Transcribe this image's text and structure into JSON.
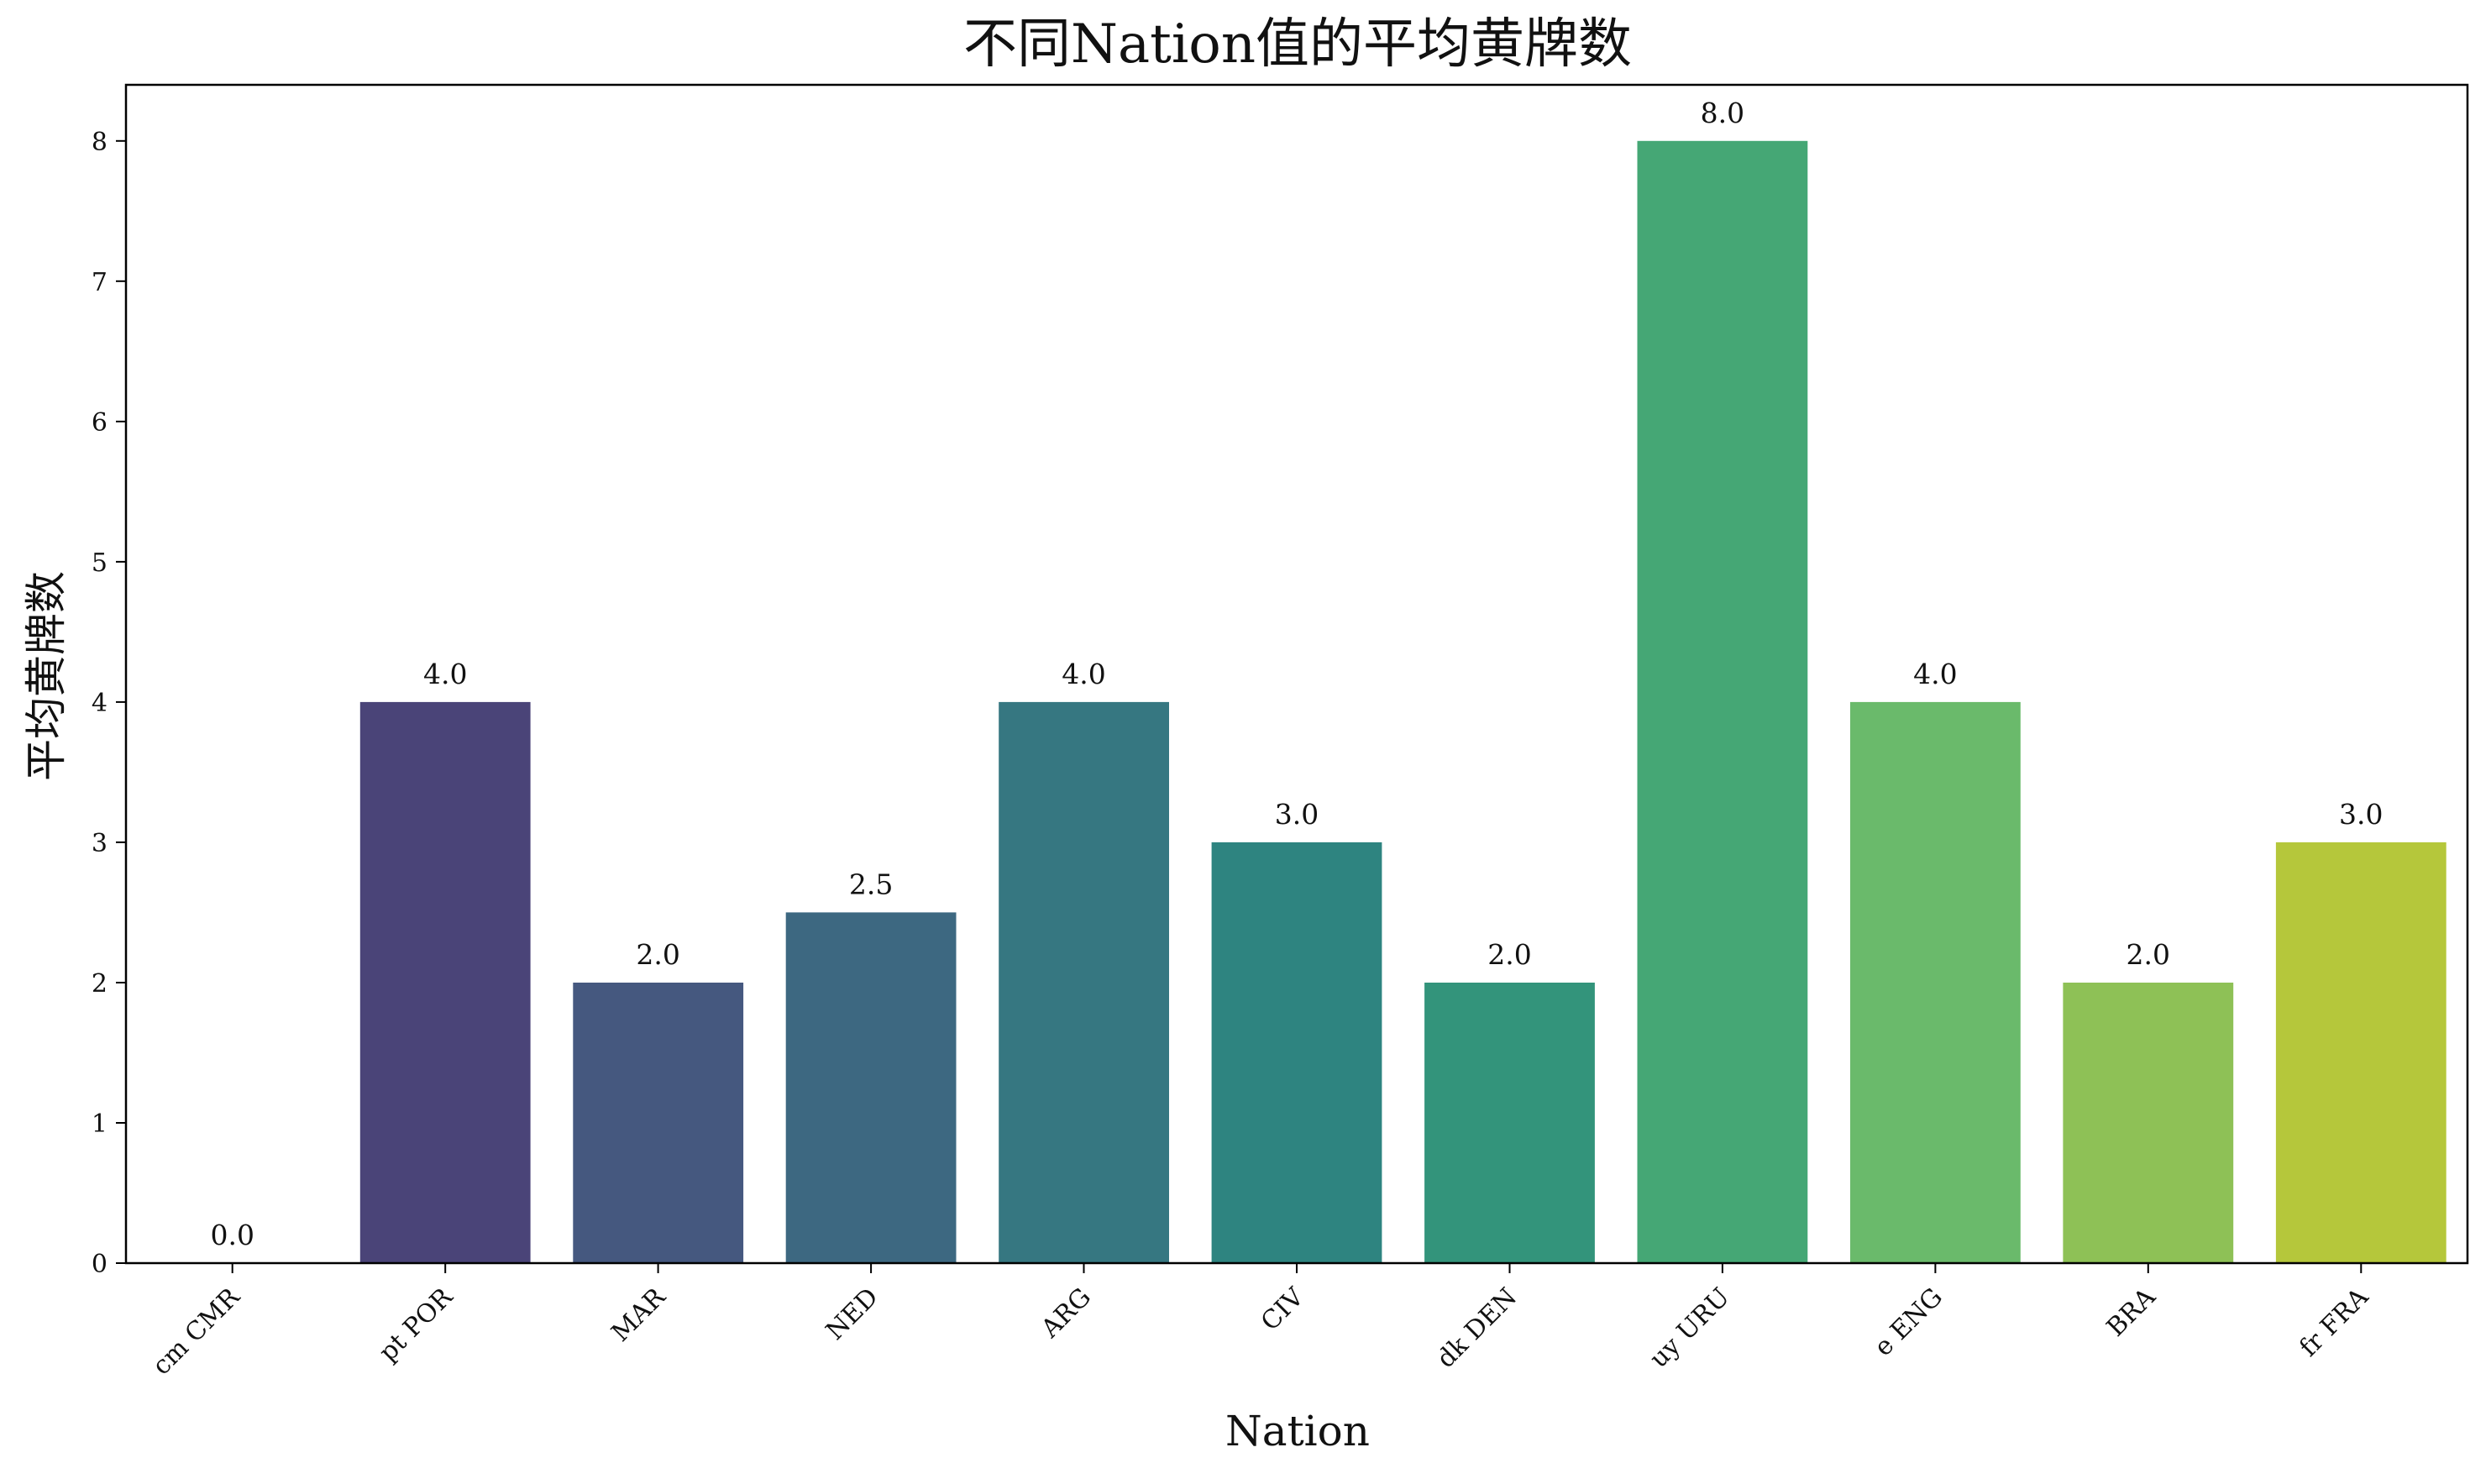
{
  "chart_data": {
    "type": "bar",
    "title": "不同Nation值的平均黄牌数",
    "xlabel": "Nation",
    "ylabel": "平均黄牌数",
    "categories": [
      "cm CMR",
      "pt POR",
      "MAR",
      "NED",
      "ARG",
      "CIV",
      "dk DEN",
      "uy URU",
      "e ENG",
      "BRA",
      "fr FRA"
    ],
    "values": [
      0.0,
      4.0,
      2.0,
      2.5,
      4.0,
      3.0,
      2.0,
      8.0,
      4.0,
      2.0,
      3.0
    ],
    "value_labels": [
      "0.0",
      "4.0",
      "2.0",
      "2.5",
      "4.0",
      "3.0",
      "2.0",
      "8.0",
      "4.0",
      "2.0",
      "3.0"
    ],
    "ylim": [
      0,
      8.4
    ],
    "yticks": [
      0,
      1,
      2,
      3,
      4,
      5,
      6,
      7,
      8
    ],
    "colors": [
      "#46085c",
      "#4a4478",
      "#45587f",
      "#3d6881",
      "#367781",
      "#2e8480",
      "#33947b",
      "#45a775",
      "#6aba6b",
      "#8ec156",
      "#b5c73b"
    ],
    "grid": false,
    "legend": "none"
  }
}
